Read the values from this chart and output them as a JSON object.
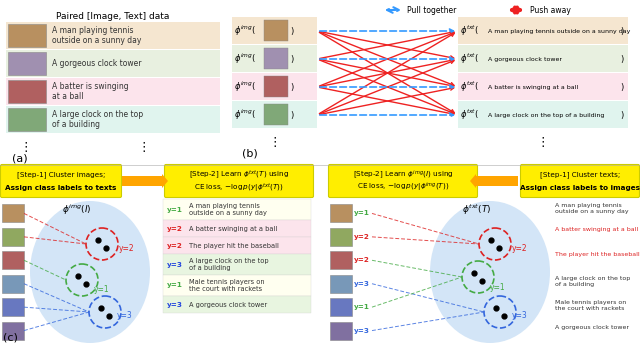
{
  "panel_a_title": "Paired [Image, Text] data",
  "panel_b_label": "(b)",
  "panel_a_label": "(a)",
  "panel_c_label": "(c)",
  "row_colors_a": [
    "#f5e6d0",
    "#e8f0e0",
    "#fce4ec",
    "#e0f4ee"
  ],
  "row_texts": [
    "A man playing tennis\noutside on a sunny day",
    "A gorgeous clock tower",
    "A batter is swinging\nat a ball",
    "A large clock on the top\nof a building"
  ],
  "legend_pull": "Pull together",
  "legend_push": "Push away",
  "pull_color": "#3399ff",
  "push_color": "#ee2222",
  "step1_left_line1": "[Step-1] Cluster images;",
  "step1_left_line2": "Assign class labels to texts",
  "step1_left_bold": "images",
  "step2_left_line1": "[Step-2] Learn $\\phi^{txt}(T)$ using",
  "step2_left_line2": "CE loss, $-\\log p(y|\\phi^{txt}(T))$",
  "step2_right_line1": "[Step-2] Learn $\\phi^{img}(I)$ using",
  "step2_right_line2": "CE loss, $-\\log p(y|\\phi^{img}(T))$",
  "step1_right_line1": "[Step-1] Cluster texts;",
  "step1_right_line2": "Assign class labels to images",
  "tbl_labels": [
    "y=1",
    "y=2",
    "y=2",
    "y=3",
    "y=1",
    "y=3"
  ],
  "tbl_label_colors": [
    "#44aa44",
    "#dd2222",
    "#dd2222",
    "#2244dd",
    "#44aa44",
    "#2244dd"
  ],
  "tbl_row_colors": [
    "#fffff0",
    "#fce4ec",
    "#fce4ec",
    "#e8f5e0",
    "#fffff0",
    "#e8f5e0"
  ],
  "tbl_texts": [
    "A man playing tennis\noutside on a sunny day",
    "A batter swinging at a ball",
    "The player hit the baseball",
    "A large clock on the top\nof a building",
    "Male tennis players on\nthe court with rackets",
    "A gorgeous clock tower"
  ],
  "right_texts": [
    "A man playing tennis\noutside on a sunny day",
    "A batter swinging at a ball",
    "The player hit the baseball",
    "A large clock on the top\nof a building",
    "Male tennis players on\nthe court with rackets",
    "A gorgeous clock tower"
  ],
  "right_text_colors": [
    "#333333",
    "#dd2222",
    "#dd2222",
    "#333333",
    "#333333",
    "#333333"
  ],
  "img_colors": [
    "#b89060",
    "#a090b0",
    "#b06060",
    "#80a878"
  ],
  "img_colors_l": [
    "#b89060",
    "#90a860",
    "#b06060",
    "#7898b8",
    "#6878c0",
    "#8070a0"
  ],
  "cluster_red": "#dd2222",
  "cluster_green": "#44aa44",
  "cluster_blue": "#3366dd",
  "bg_color": "#ffffff",
  "yellow_color": "#ffee00",
  "arrow_orange": "#FFA500"
}
